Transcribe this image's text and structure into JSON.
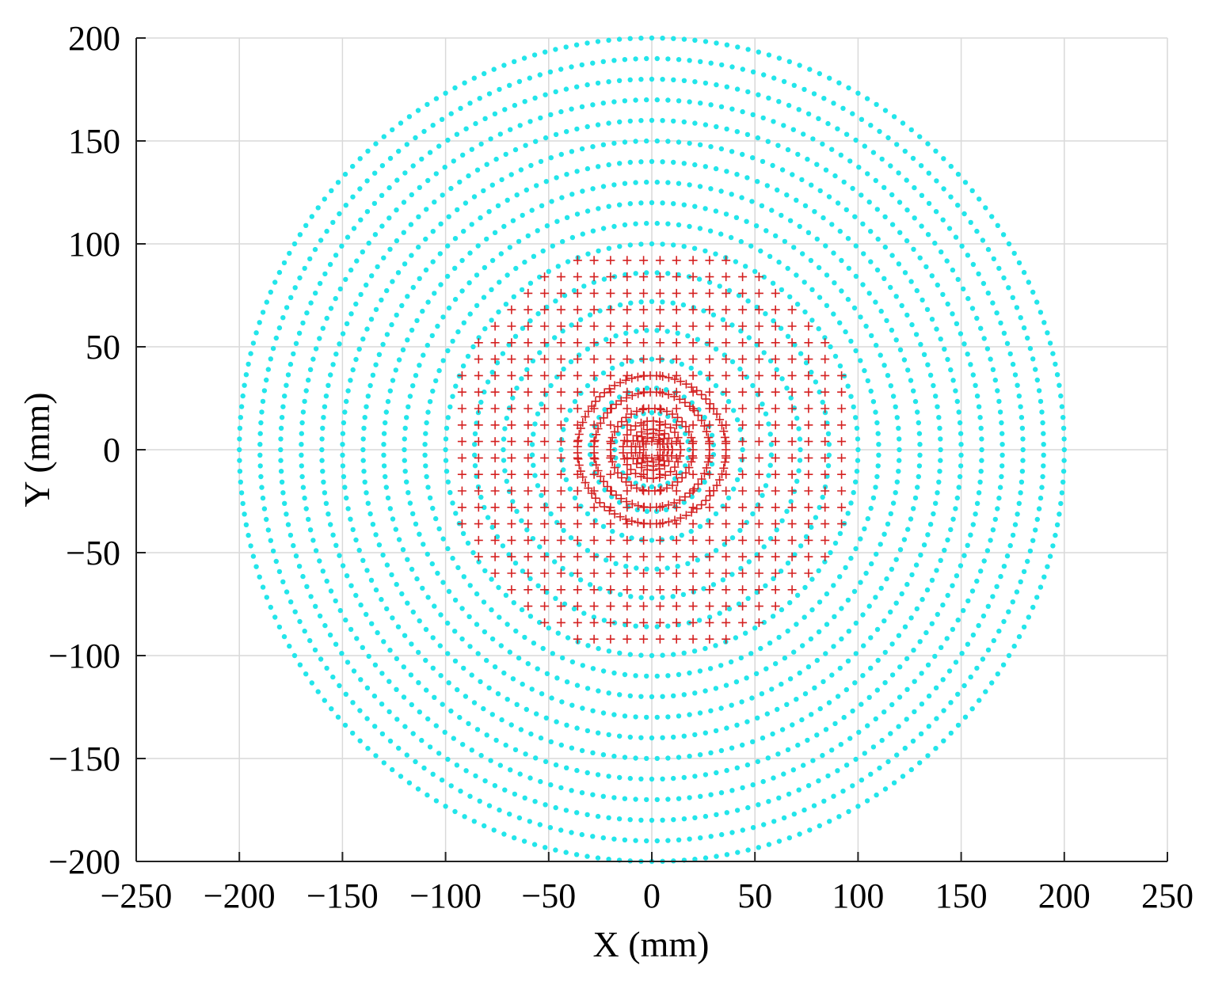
{
  "chart_data": {
    "type": "scatter",
    "title": "",
    "xlabel": "X (mm)",
    "ylabel": "Y (mm)",
    "xlim": [
      -250,
      250
    ],
    "ylim": [
      -200,
      200
    ],
    "xticks": [
      "−250",
      "−200",
      "−150",
      "−100",
      "−50",
      "0",
      "50",
      "100",
      "150",
      "200",
      "250"
    ],
    "yticks": [
      "200",
      "150",
      "100",
      "50",
      "0",
      "−50",
      "−100",
      "−150",
      "−200"
    ],
    "grid": true,
    "legend": "none",
    "series": [
      {
        "marker": "dot",
        "color": "#22e5ea",
        "description_values": {
          "layout": "concentric polar rings",
          "ring_radii_mm": [
            18,
            30,
            44,
            58,
            72,
            86,
            100,
            110,
            120,
            130,
            140,
            150,
            160,
            170,
            180,
            190,
            200
          ],
          "points_per_ring": [
            28,
            40,
            56,
            72,
            88,
            104,
            120,
            132,
            144,
            156,
            168,
            180,
            192,
            204,
            216,
            228,
            240
          ]
        }
      },
      {
        "marker": "plus",
        "color": "#d42020",
        "description_values": {
          "layout": "square grid clipped to circle",
          "grid_spacing_mm": 8,
          "max_radius_mm": 100,
          "dense_core_radii_mm": [
            4,
            6,
            8,
            10,
            14,
            20,
            28,
            36
          ]
        }
      }
    ]
  }
}
